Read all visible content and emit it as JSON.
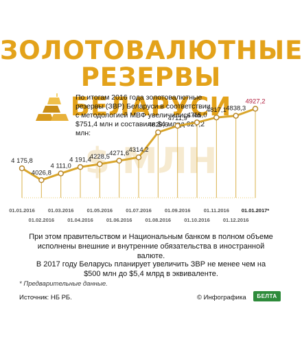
{
  "title": {
    "line1": "ЗОЛОТОВАЛЮТНЫЕ",
    "line2": "РЕЗЕРВЫ БЕЛАРУСИ"
  },
  "intro": {
    "text": "По итогам 2016 года золотовалютные резервы (ЗВР) Беларуси в соответствии с методологией МВФ увеличились на $751,4 млн и составили $4 млрд 927,2 млн:"
  },
  "watermark": "$ МЛН",
  "notes": {
    "obligations": "При этом правительством и Национальным банком в полном объеме исполнены внешние и внутренние обязательства в иностранной валюте.",
    "plan": "В 2017 году Беларусь планирует увеличить ЗВР не менее чем на $500 млн до $5,4 млрд в эквиваленте."
  },
  "footnote": "* Предварительные данные.",
  "source": "Источник: НБ РБ.",
  "credit": "© Инфографика",
  "logo_text": "БЕЛТА",
  "colors": {
    "accent": "#e3a21a",
    "line": "#d9a52a",
    "last_value": "#b01a3a",
    "logo": "#2e8b3b"
  },
  "chart_data": {
    "type": "line",
    "categories": [
      "01.01.2016",
      "01.02.2016",
      "01.03.2016",
      "01.04.2016",
      "01.05.2016",
      "01.06.2016",
      "01.07.2016",
      "01.08.2016",
      "01.09.2016",
      "01.10.2016",
      "01.11.2016",
      "01.12.2016",
      "01.01.2017*"
    ],
    "values": [
      4175.8,
      4026.8,
      4111.0,
      4191.4,
      4228.5,
      4271.6,
      4314.2,
      4629.6,
      4711.9,
      4755.0,
      4817.1,
      4838.3,
      4927.2
    ],
    "value_labels": [
      "4 175,8",
      "4026,8",
      "4 111,0",
      "4 191,4",
      "4228,5",
      "4271,6",
      "4314,2",
      "4629,6",
      "4711,9",
      "4755,0",
      "4817,1",
      "4838,3",
      "4927,2"
    ],
    "ylim": [
      3700,
      5000
    ],
    "grid": false,
    "annotations": [
      "Предварительные данные для 01.01.2017*"
    ]
  }
}
